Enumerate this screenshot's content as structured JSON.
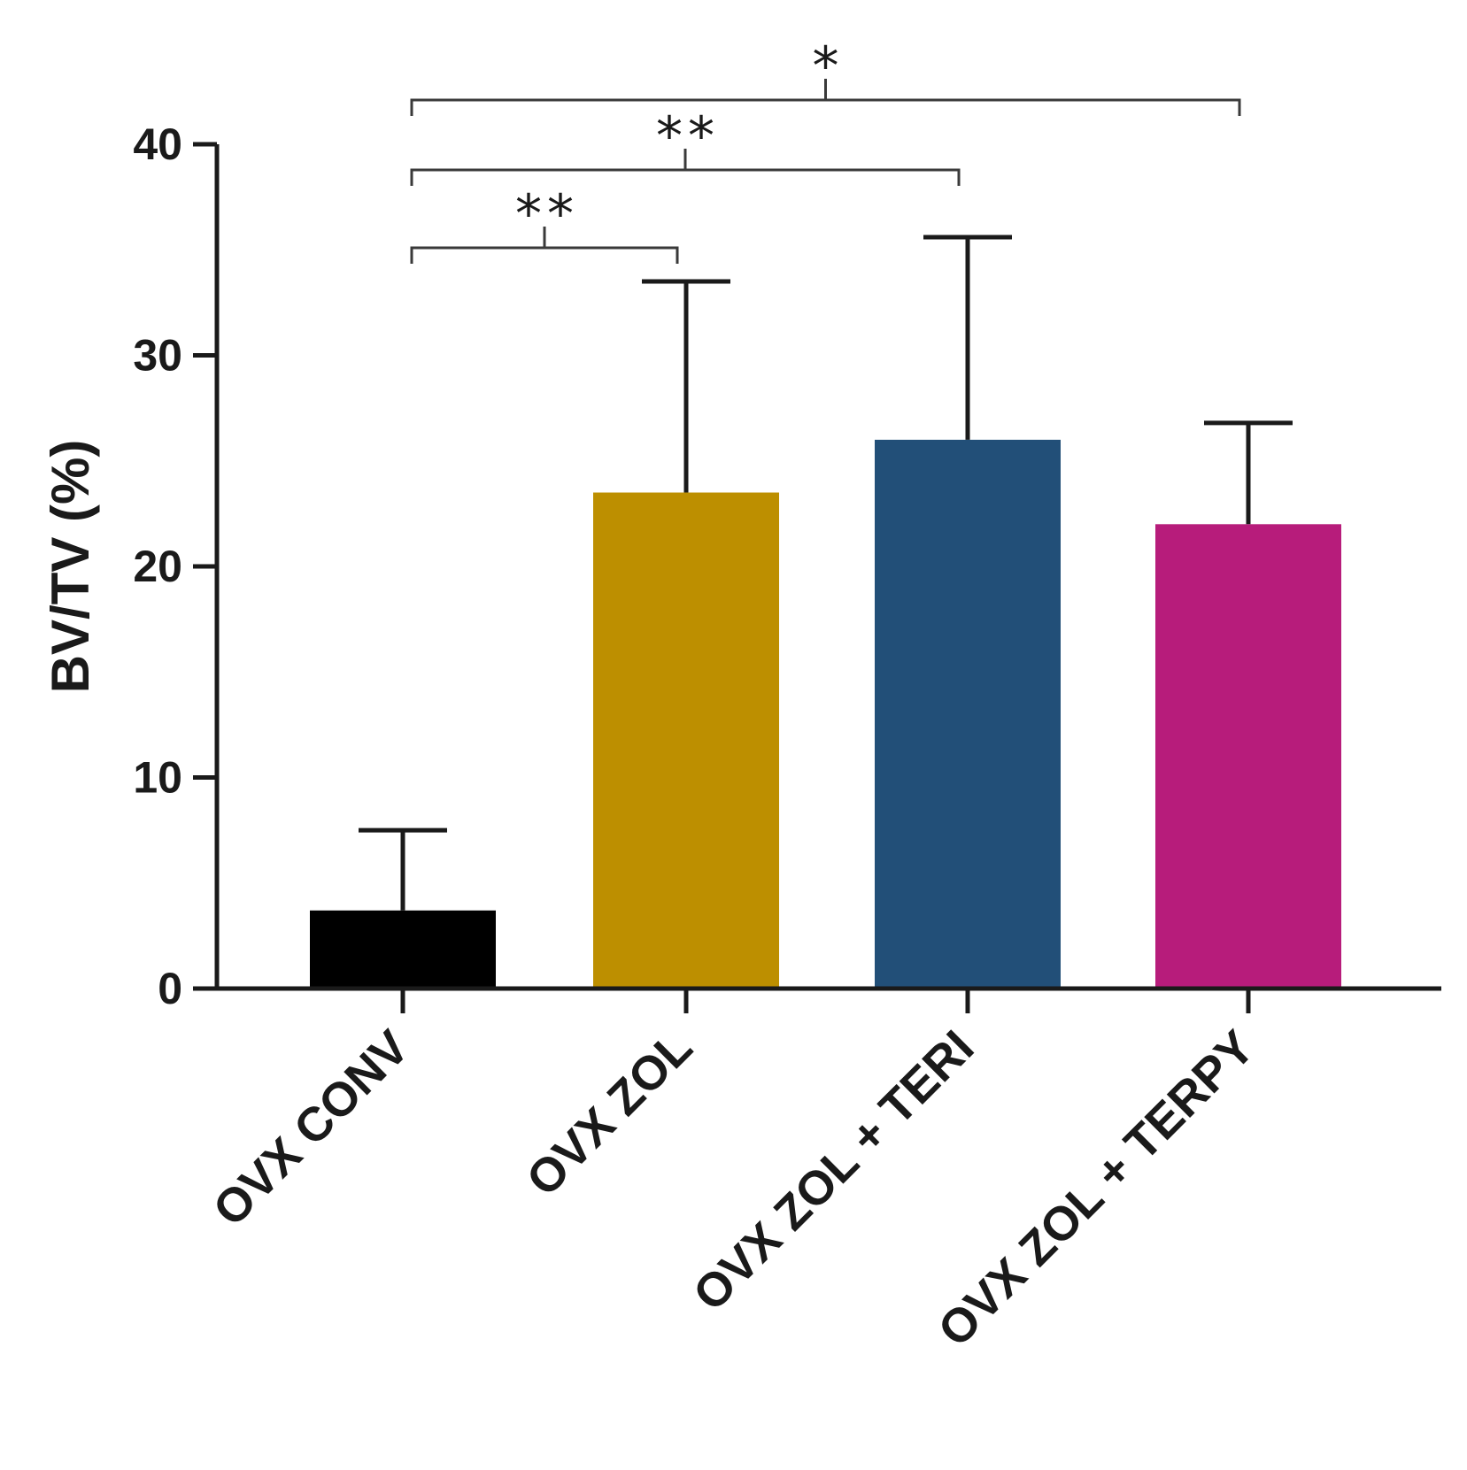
{
  "chart_data": {
    "type": "bar",
    "ylabel": "BV/TV (%)",
    "xlabel": "",
    "ylim": [
      0,
      40
    ],
    "yticks": [
      0,
      10,
      20,
      30,
      40
    ],
    "categories": [
      "OVX CONV",
      "OVX ZOL",
      "OVX ZOL + TERI",
      "OVX ZOL + TERPY"
    ],
    "values": [
      3.7,
      23.5,
      26.0,
      22.0
    ],
    "error_upper": [
      3.8,
      10.0,
      9.6,
      4.8
    ],
    "colors": [
      "#000000",
      "#bd8f00",
      "#224f78",
      "#b71c7b"
    ],
    "grid": false,
    "legend": "none",
    "significance": [
      {
        "from": "OVX CONV",
        "to": "OVX ZOL",
        "label": "**"
      },
      {
        "from": "OVX CONV",
        "to": "OVX ZOL + TERI",
        "label": "**"
      },
      {
        "from": "OVX CONV",
        "to": "OVX ZOL + TERPY",
        "label": "*"
      }
    ]
  }
}
